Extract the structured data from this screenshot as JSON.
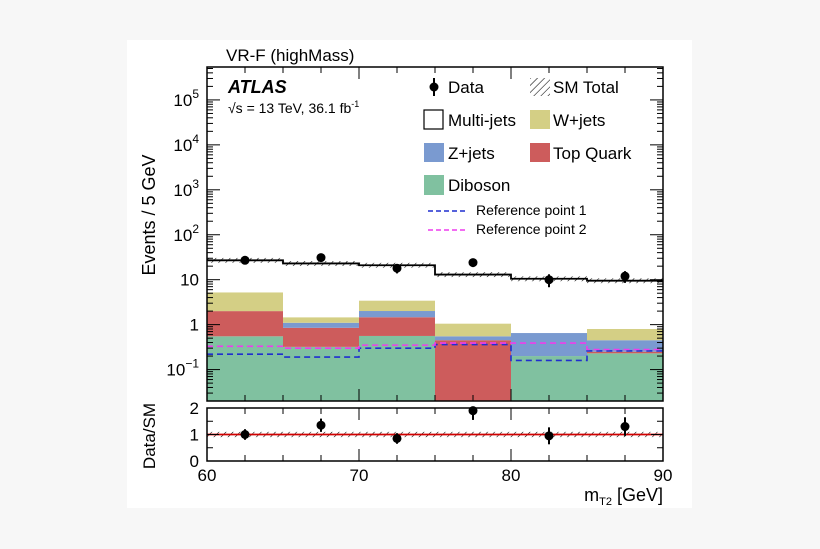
{
  "chart_data": {
    "type": "bar",
    "title": "VR-F (highMass)",
    "experiment": "ATLAS",
    "energy_label": "√s = 13 TeV, 36.1 fb",
    "lumi_superscript": "-1",
    "xlabel": "m",
    "xlabel_sub": "T2",
    "xlabel_unit": " [GeV]",
    "ylabel": "Events / 5 GeV",
    "ratio_ylabel": "Data/SM",
    "xlim": [
      60,
      90
    ],
    "ylim": [
      0.02,
      540000
    ],
    "yscale": "log",
    "ratio_ylim": [
      0,
      2
    ],
    "x_ticks": [
      "60",
      "70",
      "80",
      "90"
    ],
    "y_ticks": [
      {
        "v": 100000,
        "base": "10",
        "exp": "5"
      },
      {
        "v": 10000,
        "base": "10",
        "exp": "4"
      },
      {
        "v": 1000,
        "base": "10",
        "exp": "3"
      },
      {
        "v": 100,
        "base": "10",
        "exp": "2"
      },
      {
        "v": 10,
        "base": "10",
        "exp": ""
      },
      {
        "v": 1,
        "base": "1",
        "exp": ""
      },
      {
        "v": 0.1,
        "base": "10",
        "exp": "−1"
      }
    ],
    "ratio_ticks": [
      "0",
      "1",
      "2"
    ],
    "bin_edges": [
      60,
      65,
      70,
      75,
      80,
      85,
      90
    ],
    "stack": [
      {
        "name": "Diboson",
        "color": "#80c1a0",
        "values": [
          0.55,
          0.32,
          0.56,
          0,
          0.2,
          0.23
        ]
      },
      {
        "name": "Top Quark",
        "color": "#cd5c5c",
        "values": [
          1.45,
          0.53,
          0.9,
          0.45,
          0,
          0.02
        ]
      },
      {
        "name": "Z+jets",
        "color": "#7a9ad0",
        "values": [
          0,
          0.25,
          0.55,
          0.1,
          0.45,
          0.2
        ]
      },
      {
        "name": "W+jets",
        "color": "#d4cf85",
        "values": [
          3.2,
          0.35,
          1.4,
          0.5,
          0,
          0.35
        ]
      }
    ],
    "multijets": {
      "name": "Multi-jets"
    },
    "sm_total": {
      "name": "SM Total",
      "values": [
        27,
        23,
        21,
        13,
        10.5,
        9.5
      ]
    },
    "data": {
      "name": "Data",
      "x": [
        62.5,
        67.5,
        72.5,
        77.5,
        82.5,
        87.5
      ],
      "values": [
        27,
        31,
        18,
        24,
        10,
        12
      ],
      "errors": [
        5.2,
        5.6,
        4.2,
        4.9,
        3.2,
        3.5
      ]
    },
    "reference_points": [
      {
        "name": "Reference point 1",
        "color": "#1f2fcf",
        "values": [
          0.22,
          0.19,
          0.3,
          0.36,
          0.16,
          0.26
        ]
      },
      {
        "name": "Reference point 2",
        "color": "#ee3cee",
        "values": [
          0.33,
          0.3,
          0.35,
          0.39,
          0.39,
          0.28
        ]
      }
    ],
    "ratio": {
      "values": [
        1.0,
        1.35,
        0.85,
        1.9,
        0.95,
        1.3
      ],
      "errors": [
        0.2,
        0.25,
        0.2,
        0.35,
        0.32,
        0.35
      ]
    },
    "legend_placement": "top-right"
  }
}
